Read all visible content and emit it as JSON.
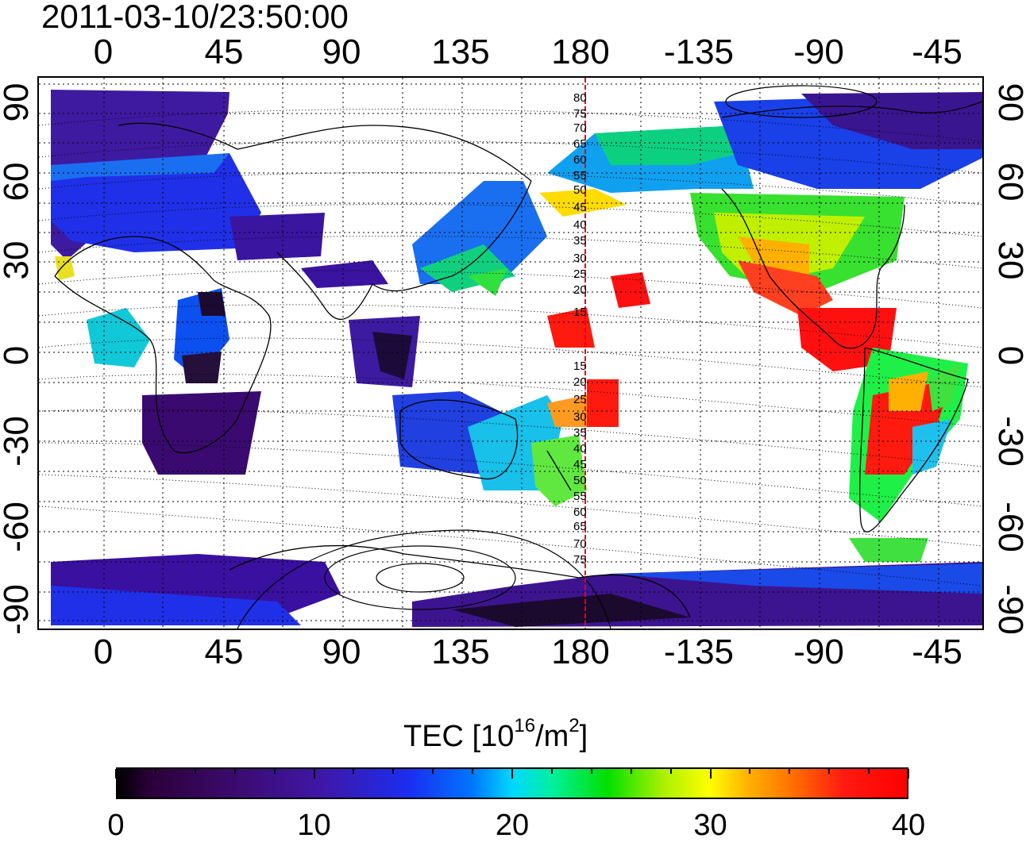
{
  "timestamp": "2011-03-10/23:50:00",
  "map": {
    "top_lon_ticks": [
      "0",
      "45",
      "90",
      "135",
      "180",
      "-135",
      "-90",
      "-45"
    ],
    "bottom_lon_ticks": [
      "0",
      "45",
      "90",
      "135",
      "180",
      "-135",
      "-90",
      "-45"
    ],
    "left_lat_ticks": [
      "90",
      "60",
      "30",
      "0",
      "-30",
      "-60",
      "-90"
    ],
    "right_lat_ticks": [
      "90",
      "60",
      "30",
      "0",
      "-30",
      "-60",
      "-90"
    ],
    "magnetic_latitude_labels": [
      "80",
      "75",
      "70",
      "65",
      "60",
      "55",
      "50",
      "45",
      "40",
      "35",
      "30",
      "25",
      "20",
      "15",
      "15",
      "20",
      "25",
      "30",
      "35",
      "40",
      "45",
      "50",
      "55",
      "60",
      "65",
      "70",
      "75"
    ],
    "dateline_color": "#e8000a",
    "grid": "dotted"
  },
  "colorbar": {
    "title_prefix": "TEC  [10",
    "title_exp": "16",
    "title_mid": "/m",
    "title_exp2": "2",
    "title_suffix": "]",
    "min": 0,
    "max": 40,
    "tick_labels": [
      "0",
      "10",
      "20",
      "30",
      "40"
    ],
    "colors": [
      "#000000",
      "#3a0a6a",
      "#1a2ef0",
      "#00d8ff",
      "#00e000",
      "#ffff00",
      "#ff6a00",
      "#ff0000"
    ]
  }
}
